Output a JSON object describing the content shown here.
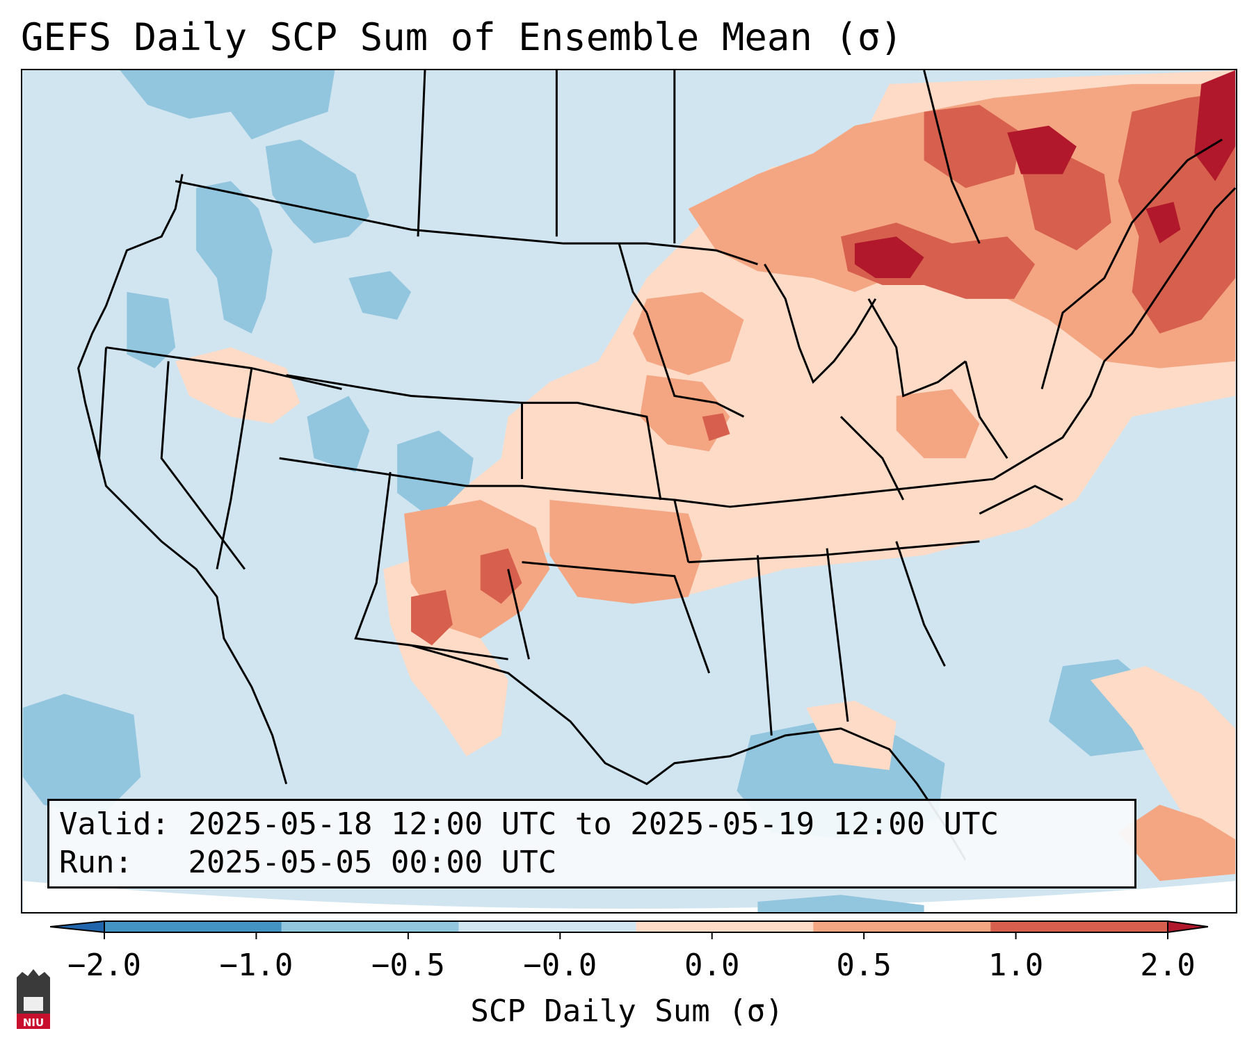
{
  "title": "GEFS Daily SCP Sum of Ensemble Mean (σ)",
  "info": {
    "valid_label": "Valid:",
    "valid_value": "2025-05-18 12:00 UTC to 2025-05-19 12:00 UTC",
    "run_label": "Run:",
    "run_value": "2025-05-05 00:00 UTC"
  },
  "colorbar": {
    "label": "SCP Daily Sum (σ)",
    "ticks": [
      "−2.0",
      "−1.0",
      "−0.5",
      "−0.0",
      "0.0",
      "0.5",
      "1.0",
      "2.0"
    ],
    "colors": [
      "#4393c3",
      "#92c5de",
      "#d1e5f0",
      "#fddbc7",
      "#f4a582",
      "#d6604d"
    ],
    "under_color": "#2166ac",
    "over_color": "#b2182b"
  },
  "logo": {
    "text": "NIU",
    "accent": "#c8102e"
  }
}
